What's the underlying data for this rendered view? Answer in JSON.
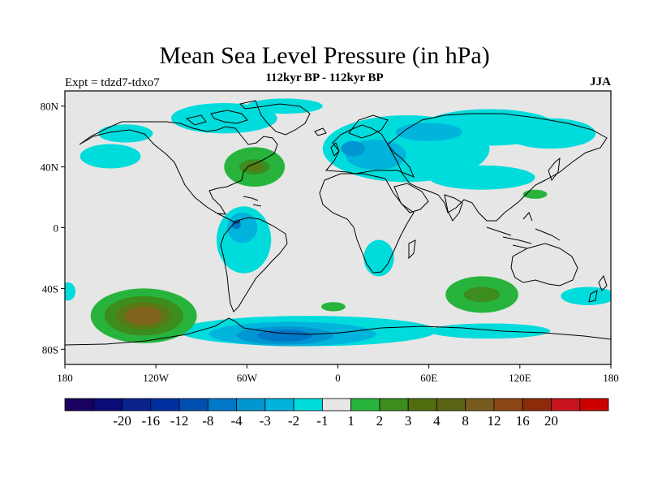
{
  "header": {
    "title": "Mean Sea Level Pressure (in hPa)",
    "subtitle": "112kyr BP - 112kyr BP",
    "left_label": "Expt = tdzd7-tdxo7",
    "right_label": "JJA"
  },
  "map": {
    "projection": "cylindrical-equidistant",
    "lon_range": [
      -180,
      180
    ],
    "lat_range": [
      -90,
      90
    ],
    "background_color": "#e6e6e6",
    "coastline_color": "#000000",
    "lat_ticks": [
      {
        "value": 80,
        "label": "80N"
      },
      {
        "value": 40,
        "label": "40N"
      },
      {
        "value": 0,
        "label": "0"
      },
      {
        "value": -40,
        "label": "40S"
      },
      {
        "value": -80,
        "label": "80S"
      }
    ],
    "lon_ticks": [
      {
        "value": -180,
        "label": "180"
      },
      {
        "value": -120,
        "label": "120W"
      },
      {
        "value": -60,
        "label": "60W"
      },
      {
        "value": 0,
        "label": "0"
      },
      {
        "value": 60,
        "label": "60E"
      },
      {
        "value": 120,
        "label": "120E"
      },
      {
        "value": 180,
        "label": "180"
      }
    ],
    "anomaly_regions": [
      {
        "name": "north-pacific-neg",
        "level": -1,
        "color": "#00dcdc",
        "lon": -150,
        "lat": 47,
        "rlon": 20,
        "rlat": 8
      },
      {
        "name": "alaska-neg",
        "level": -1,
        "color": "#00dcdc",
        "lon": -140,
        "lat": 62,
        "rlon": 18,
        "rlat": 6
      },
      {
        "name": "canada-arctic-neg",
        "level": -1,
        "color": "#00dcdc",
        "lon": -75,
        "lat": 72,
        "rlon": 35,
        "rlat": 10
      },
      {
        "name": "greenland-north-neg",
        "level": -1,
        "color": "#00dcdc",
        "lon": -35,
        "lat": 80,
        "rlon": 25,
        "rlat": 5
      },
      {
        "name": "eurasia-neg",
        "level": -1,
        "color": "#00dcdc",
        "lon": 45,
        "lat": 52,
        "rlon": 55,
        "rlat": 22
      },
      {
        "name": "siberia-neg",
        "level": -1,
        "color": "#00dcdc",
        "lon": 100,
        "lat": 66,
        "rlon": 45,
        "rlat": 12
      },
      {
        "name": "east-siberia-neg",
        "level": -1,
        "color": "#00dcdc",
        "lon": 140,
        "lat": 62,
        "rlon": 30,
        "rlat": 10
      },
      {
        "name": "asia-monsoon-neg",
        "level": -1,
        "color": "#00dcdc",
        "lon": 95,
        "lat": 33,
        "rlon": 35,
        "rlat": 8
      },
      {
        "name": "europe-neg2",
        "level": -2,
        "color": "#00b4dc",
        "lon": 25,
        "lat": 48,
        "rlon": 20,
        "rlat": 10
      },
      {
        "name": "europe-neg3",
        "level": -3,
        "color": "#0096d2",
        "lon": 10,
        "lat": 52,
        "rlon": 8,
        "rlat": 5
      },
      {
        "name": "siberia-neg2",
        "level": -2,
        "color": "#00b4dc",
        "lon": 60,
        "lat": 63,
        "rlon": 22,
        "rlat": 6
      },
      {
        "name": "south-america-neg",
        "level": -1,
        "color": "#00dcdc",
        "lon": -62,
        "lat": -8,
        "rlon": 18,
        "rlat": 22
      },
      {
        "name": "south-america-neg2",
        "level": -2,
        "color": "#00b4dc",
        "lon": -63,
        "lat": 0,
        "rlon": 10,
        "rlat": 10
      },
      {
        "name": "south-america-neg4",
        "level": -4,
        "color": "#0078c8",
        "lon": -67,
        "lat": 2,
        "rlon": 3,
        "rlat": 3
      },
      {
        "name": "southern-africa-neg",
        "level": -1,
        "color": "#00dcdc",
        "lon": 27,
        "lat": -20,
        "rlon": 10,
        "rlat": 12
      },
      {
        "name": "south-indian-neg",
        "level": -1,
        "color": "#00dcdc",
        "lon": 165,
        "lat": -45,
        "rlon": 18,
        "rlat": 6
      },
      {
        "name": "south-pacific-west-neg",
        "level": -1,
        "color": "#00dcdc",
        "lon": -178,
        "lat": -42,
        "rlon": 5,
        "rlat": 6
      },
      {
        "name": "southern-ocean-neg",
        "level": -1,
        "color": "#00dcdc",
        "lon": -20,
        "lat": -68,
        "rlon": 85,
        "rlat": 10
      },
      {
        "name": "southern-ocean-neg2",
        "level": -2,
        "color": "#00b4dc",
        "lon": -30,
        "lat": -70,
        "rlon": 55,
        "rlat": 8
      },
      {
        "name": "weddell-neg3",
        "level": -3,
        "color": "#0096d2",
        "lon": -35,
        "lat": -71,
        "rlon": 32,
        "rlat": 6
      },
      {
        "name": "weddell-neg4",
        "level": -4,
        "color": "#0078c8",
        "lon": -35,
        "lat": -71,
        "rlon": 18,
        "rlat": 4
      },
      {
        "name": "south-indian-ocean-neg",
        "level": -1,
        "color": "#00dcdc",
        "lon": 100,
        "lat": -68,
        "rlon": 40,
        "rlat": 5
      },
      {
        "name": "north-atlantic-pos1",
        "level": 2,
        "color": "#28b43c",
        "lon": -55,
        "lat": 40,
        "rlon": 20,
        "rlat": 13
      },
      {
        "name": "north-atlantic-pos2",
        "level": 3,
        "color": "#3c8c1e",
        "lon": -55,
        "lat": 40,
        "rlon": 10,
        "rlat": 5
      },
      {
        "name": "north-atlantic-pos3",
        "level": 4,
        "color": "#5a7814",
        "lon": -55,
        "lat": 40,
        "rlon": 5,
        "rlat": 2.5
      },
      {
        "name": "west-pacific-pos",
        "level": 2,
        "color": "#28b43c",
        "lon": 130,
        "lat": 22,
        "rlon": 8,
        "rlat": 3
      },
      {
        "name": "south-pacific-pos1",
        "level": 2,
        "color": "#28b43c",
        "lon": -128,
        "lat": -58,
        "rlon": 35,
        "rlat": 18
      },
      {
        "name": "south-pacific-pos2",
        "level": 3,
        "color": "#3c8c1e",
        "lon": -128,
        "lat": -58,
        "rlon": 26,
        "rlat": 13
      },
      {
        "name": "south-pacific-pos3",
        "level": 4,
        "color": "#5a7814",
        "lon": -128,
        "lat": -58,
        "rlon": 18,
        "rlat": 9
      },
      {
        "name": "south-pacific-pos4",
        "level": 8,
        "color": "#82641e",
        "lon": -128,
        "lat": -58,
        "rlon": 12,
        "rlat": 6
      },
      {
        "name": "south-atlantic-pos",
        "level": 2,
        "color": "#28b43c",
        "lon": -3,
        "lat": -52,
        "rlon": 8,
        "rlat": 3
      },
      {
        "name": "south-indian-pos1",
        "level": 2,
        "color": "#28b43c",
        "lon": 95,
        "lat": -44,
        "rlon": 24,
        "rlat": 12
      },
      {
        "name": "south-indian-pos2",
        "level": 3,
        "color": "#3c8c1e",
        "lon": 95,
        "lat": -44,
        "rlon": 12,
        "rlat": 5
      }
    ]
  },
  "colorbar": {
    "colors": [
      "#1a0060",
      "#0a0a78",
      "#0a228c",
      "#0030a0",
      "#0050b4",
      "#0078c8",
      "#0096d2",
      "#00b4dc",
      "#00dcdc",
      "#e6e6e6",
      "#28b43c",
      "#3c8c1e",
      "#506e10",
      "#5a6414",
      "#785a1e",
      "#8c4614",
      "#8c2a0a",
      "#c8141e",
      "#cc0000"
    ],
    "labels": [
      "-20",
      "-16",
      "-12",
      "-8",
      "-4",
      "-3",
      "-2",
      "-1",
      "1",
      "2",
      "3",
      "4",
      "8",
      "12",
      "16",
      "20"
    ]
  }
}
